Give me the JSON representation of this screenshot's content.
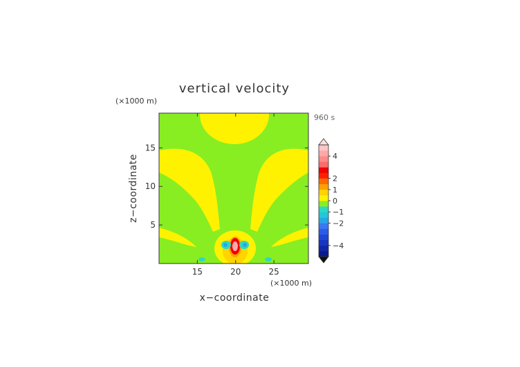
{
  "chart_data": {
    "type": "heatmap",
    "title": "vertical velocity",
    "time_label": "960 s",
    "xlabel": "x−coordinate",
    "ylabel": "z−coordinate",
    "x_unit": "(×1000 m)",
    "y_unit": "(×1000 m)",
    "xlim": [
      10,
      29.5
    ],
    "ylim": [
      0,
      19.5
    ],
    "x_ticks": [
      15,
      20,
      25
    ],
    "y_ticks": [
      5,
      10,
      15
    ],
    "x_tick_labels": [
      "15",
      "20",
      "25"
    ],
    "y_tick_labels": [
      "5",
      "10",
      "15"
    ],
    "colorbar": {
      "levels": [
        -5,
        -4.5,
        -4,
        -3.5,
        -3,
        -2.5,
        -2,
        -1.5,
        -1,
        -0.5,
        0,
        0.5,
        1,
        1.5,
        2,
        2.5,
        3,
        3.5,
        4,
        4.5,
        5
      ],
      "colors": [
        "#0a1a8c",
        "#1028a8",
        "#1836c0",
        "#2046d6",
        "#2a5ce8",
        "#3a78f0",
        "#2aa6e8",
        "#22c8d8",
        "#2ed8c0",
        "#88ee22",
        "#fff200",
        "#ffd400",
        "#ffa000",
        "#ff6a00",
        "#ff2000",
        "#f00000",
        "#ff6a6a",
        "#ff8a8a",
        "#ffa8a8",
        "#ffc4c4"
      ],
      "tick_values": [
        4,
        2,
        1,
        0,
        -1,
        -2,
        -4
      ],
      "tick_labels": [
        "4",
        "2",
        "1",
        "0",
        "−1",
        "−2",
        "−4"
      ]
    }
  }
}
